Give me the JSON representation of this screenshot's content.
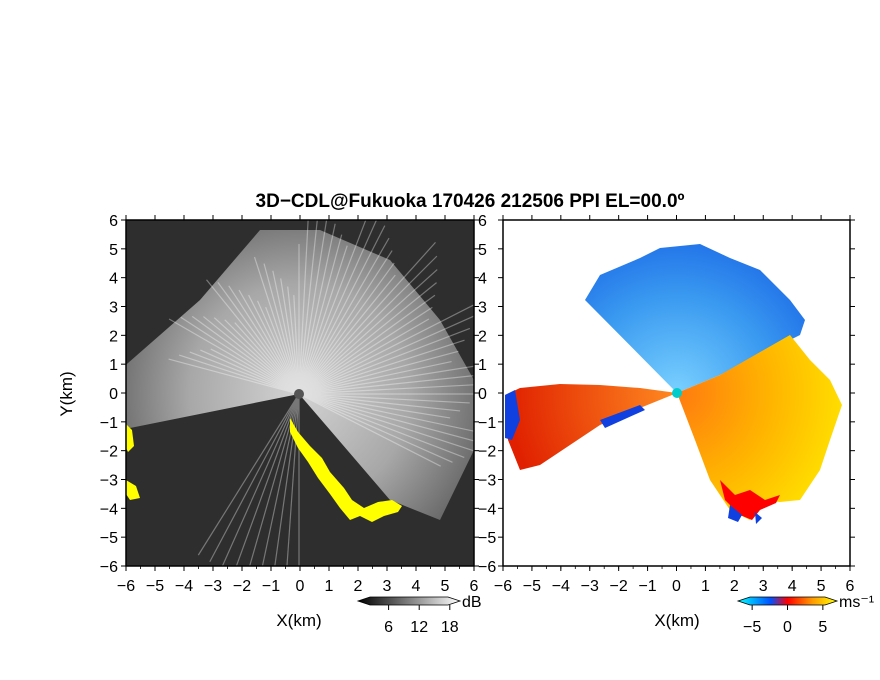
{
  "figure": {
    "title": "3D−CDL@Fukuoka 170426 212506 PPI EL=00.0º"
  },
  "chart_data": [
    {
      "type": "heatmap",
      "quantity": "reflectivity",
      "xlabel": "X(km)",
      "ylabel": "Y(km)",
      "xlim": [
        -6,
        6
      ],
      "ylim": [
        -6,
        6
      ],
      "x_ticks": [
        "−6",
        "−5",
        "−4",
        "−3",
        "−2",
        "−1",
        "0",
        "1",
        "2",
        "3",
        "4",
        "5",
        "6"
      ],
      "y_ticks": [
        "6",
        "5",
        "4",
        "3",
        "2",
        "1",
        "0",
        "−1",
        "−2",
        "−3",
        "−4",
        "−5",
        "−6"
      ],
      "colorbar": {
        "unit": "dB",
        "tick_labels": [
          "6",
          "12",
          "18"
        ],
        "ticks": [
          6,
          12,
          18
        ],
        "range": [
          0,
          20
        ],
        "colors": [
          "#000000",
          "#ffffff"
        ]
      },
      "background_color": "#2e2e2e",
      "strong_echo_color": "#ffff00",
      "bright_sector_azimuth_deg": [
        -75,
        118
      ]
    },
    {
      "type": "heatmap",
      "quantity": "doppler-velocity",
      "xlabel": "X(km)",
      "ylabel": "",
      "xlim": [
        -6,
        6
      ],
      "ylim": [
        -6,
        6
      ],
      "x_ticks": [
        "−6",
        "−5",
        "−4",
        "−3",
        "−2",
        "−1",
        "0",
        "1",
        "2",
        "3",
        "4",
        "5",
        "6"
      ],
      "y_ticks": [
        "6",
        "5",
        "4",
        "3",
        "2",
        "1",
        "0",
        "−1",
        "−2",
        "−3",
        "−4",
        "−5",
        "−6"
      ],
      "colorbar": {
        "unit": "ms⁻¹",
        "tick_labels": [
          "−5",
          "0",
          "5"
        ],
        "ticks": [
          -5,
          0,
          5
        ],
        "range": [
          -7,
          7
        ],
        "colors": [
          "#00ffff",
          "#0050ff",
          "#ff0000",
          "#ff9900",
          "#ffff00"
        ]
      },
      "background_color": "#ffffff"
    }
  ]
}
